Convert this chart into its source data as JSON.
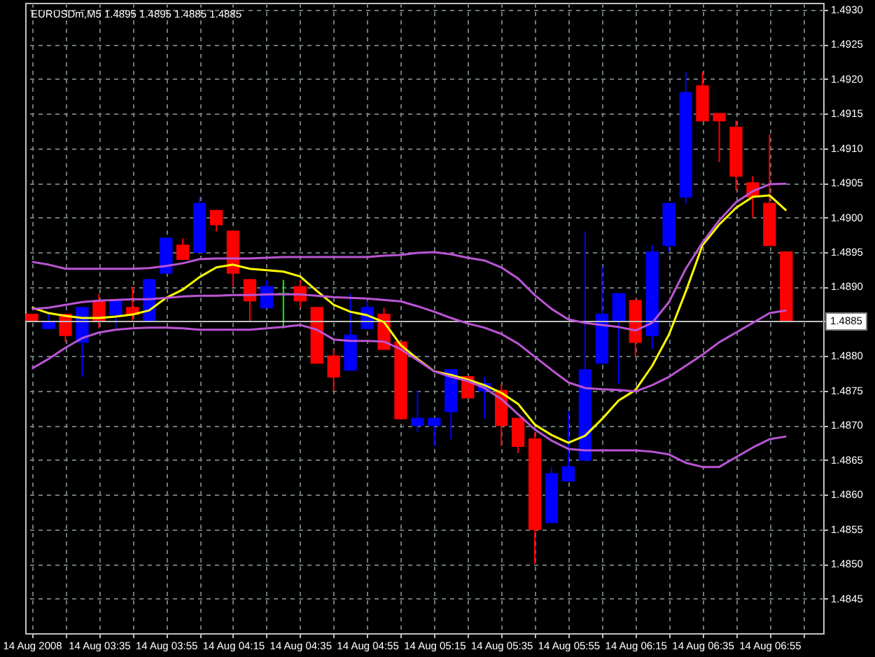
{
  "chart_data": {
    "type": "candlestick",
    "title": "EURUSDm,M5 1.4895 1.4895 1.4885 1.4885",
    "x": [
      "2008-08-14T03:15",
      "2008-08-14T03:20",
      "2008-08-14T03:25",
      "2008-08-14T03:30",
      "2008-08-14T03:35",
      "2008-08-14T03:40",
      "2008-08-14T03:45",
      "2008-08-14T03:50",
      "2008-08-14T03:55",
      "2008-08-14T04:00",
      "2008-08-14T04:05",
      "2008-08-14T04:10",
      "2008-08-14T04:15",
      "2008-08-14T04:20",
      "2008-08-14T04:25",
      "2008-08-14T04:30",
      "2008-08-14T04:35",
      "2008-08-14T04:40",
      "2008-08-14T04:45",
      "2008-08-14T04:50",
      "2008-08-14T04:55",
      "2008-08-14T05:00",
      "2008-08-14T05:05",
      "2008-08-14T05:10",
      "2008-08-14T05:15",
      "2008-08-14T05:20",
      "2008-08-14T05:25",
      "2008-08-14T05:30",
      "2008-08-14T05:35",
      "2008-08-14T05:40",
      "2008-08-14T05:45",
      "2008-08-14T05:50",
      "2008-08-14T05:55",
      "2008-08-14T06:00",
      "2008-08-14T06:05",
      "2008-08-14T06:10",
      "2008-08-14T06:15",
      "2008-08-14T06:20",
      "2008-08-14T06:25",
      "2008-08-14T06:30",
      "2008-08-14T06:35",
      "2008-08-14T06:40",
      "2008-08-14T06:45",
      "2008-08-14T06:50",
      "2008-08-14T06:55",
      "2008-08-14T07:00"
    ],
    "ohlc": [
      [
        1.4886,
        1.4886,
        1.4885,
        1.4885
      ],
      [
        1.4884,
        1.4886,
        1.4884,
        1.4885
      ],
      [
        1.4886,
        1.4886,
        1.4882,
        1.4883
      ],
      [
        1.4882,
        1.4887,
        1.4877,
        1.4887
      ],
      [
        1.4888,
        1.4889,
        1.4884,
        1.4885
      ],
      [
        1.4886,
        1.4888,
        1.4884,
        1.4888
      ],
      [
        1.4887,
        1.489,
        1.4885,
        1.4886
      ],
      [
        1.4885,
        1.4891,
        1.4885,
        1.4891
      ],
      [
        1.4892,
        1.4897,
        1.4892,
        1.4897
      ],
      [
        1.4896,
        1.4897,
        1.4894,
        1.4894
      ],
      [
        1.4895,
        1.4903,
        1.4895,
        1.4902
      ],
      [
        1.4901,
        1.4901,
        1.4898,
        1.4899
      ],
      [
        1.4898,
        1.4898,
        1.489,
        1.4892
      ],
      [
        1.4891,
        1.4891,
        1.4885,
        1.4888
      ],
      [
        1.4887,
        1.4891,
        1.4887,
        1.489
      ],
      [
        1.4889,
        1.4891,
        1.4884,
        1.4889
      ],
      [
        1.489,
        1.4891,
        1.4887,
        1.4888
      ],
      [
        1.4887,
        1.4887,
        1.4879,
        1.4879
      ],
      [
        1.488,
        1.4881,
        1.4875,
        1.4877
      ],
      [
        1.4878,
        1.4889,
        1.4878,
        1.4883
      ],
      [
        1.4884,
        1.4888,
        1.4884,
        1.4887
      ],
      [
        1.4886,
        1.4887,
        1.4881,
        1.4881
      ],
      [
        1.4882,
        1.4882,
        1.4871,
        1.4871
      ],
      [
        1.487,
        1.4875,
        1.4869,
        1.4871
      ],
      [
        1.487,
        1.4871,
        1.4867,
        1.4871
      ],
      [
        1.4872,
        1.4878,
        1.4868,
        1.4878
      ],
      [
        1.4877,
        1.4877,
        1.4874,
        1.4874
      ],
      [
        1.4875,
        1.4877,
        1.4871,
        1.4876
      ],
      [
        1.4875,
        1.4876,
        1.4867,
        1.487
      ],
      [
        1.4871,
        1.4871,
        1.4866,
        1.4867
      ],
      [
        1.4868,
        1.4869,
        1.485,
        1.4855
      ],
      [
        1.4856,
        1.4864,
        1.4856,
        1.4863
      ],
      [
        1.4862,
        1.4872,
        1.4862,
        1.4864
      ],
      [
        1.4865,
        1.4898,
        1.4865,
        1.4878
      ],
      [
        1.4879,
        1.4893,
        1.4879,
        1.4886
      ],
      [
        1.4885,
        1.4889,
        1.4876,
        1.4889
      ],
      [
        1.4888,
        1.4888,
        1.488,
        1.4882
      ],
      [
        1.4883,
        1.4896,
        1.4881,
        1.4895
      ],
      [
        1.4896,
        1.4902,
        1.4895,
        1.4902
      ],
      [
        1.4903,
        1.4921,
        1.4902,
        1.4918
      ],
      [
        1.4919,
        1.4921,
        1.4914,
        1.4914
      ],
      [
        1.4915,
        1.4915,
        1.4908,
        1.4914
      ],
      [
        1.4913,
        1.4914,
        1.4904,
        1.4906
      ],
      [
        1.4905,
        1.4906,
        1.49,
        1.4903
      ],
      [
        1.4902,
        1.4912,
        1.4896,
        1.4896
      ],
      [
        1.4895,
        1.4895,
        1.4885,
        1.4885
      ]
    ],
    "colors": [
      "#ff0000",
      "#0000ff",
      "#ff0000",
      "#0000ff",
      "#ff0000",
      "#0000ff",
      "#ff0000",
      "#0000ff",
      "#0000ff",
      "#ff0000",
      "#0000ff",
      "#ff0000",
      "#ff0000",
      "#ff0000",
      "#0000ff",
      "#00ff00",
      "#ff0000",
      "#ff0000",
      "#ff0000",
      "#0000ff",
      "#0000ff",
      "#ff0000",
      "#ff0000",
      "#0000ff",
      "#0000ff",
      "#0000ff",
      "#ff0000",
      "#0000ff",
      "#ff0000",
      "#ff0000",
      "#ff0000",
      "#0000ff",
      "#0000ff",
      "#0000ff",
      "#0000ff",
      "#0000ff",
      "#ff0000",
      "#0000ff",
      "#0000ff",
      "#0000ff",
      "#ff0000",
      "#ff0000",
      "#ff0000",
      "#ff0000",
      "#ff0000",
      "#ff0000"
    ],
    "series": [
      {
        "type": "line",
        "color": "#ffff00",
        "values": [
          1.4887,
          1.48862,
          1.48858,
          1.48855,
          1.48855,
          1.48857,
          1.4886,
          1.48866,
          1.48884,
          1.48896,
          1.48914,
          1.48928,
          1.48932,
          1.48926,
          1.48924,
          1.48922,
          1.48915,
          1.48894,
          1.48874,
          1.48864,
          1.48859,
          1.48849,
          1.48816,
          1.48796,
          1.48778,
          1.48773,
          1.48766,
          1.48758,
          1.48747,
          1.48731,
          1.48701,
          1.48686,
          1.48675,
          1.48685,
          1.48709,
          1.48736,
          1.48751,
          1.48786,
          1.48831,
          1.48893,
          1.4896,
          1.4899,
          1.49014,
          1.4903,
          1.49032,
          1.4901
        ]
      },
      {
        "type": "line",
        "color": "#ba55d3",
        "values": [
          1.48936,
          1.48932,
          1.48926,
          1.48926,
          1.48926,
          1.48926,
          1.48926,
          1.48927,
          1.4893,
          1.48934,
          1.4894,
          1.48941,
          1.48941,
          1.48941,
          1.48942,
          1.48943,
          1.48943,
          1.48943,
          1.48943,
          1.48943,
          1.48943,
          1.48945,
          1.48946,
          1.48949,
          1.4895,
          1.48947,
          1.48942,
          1.48938,
          1.48928,
          1.48912,
          1.48888,
          1.48868,
          1.48853,
          1.48848,
          1.48845,
          1.48842,
          1.48837,
          1.48848,
          1.48878,
          1.48926,
          1.48964,
          1.48996,
          1.49022,
          1.49038,
          1.49048,
          1.49049
        ]
      },
      {
        "type": "line",
        "color": "#ba55d3",
        "values": [
          1.48868,
          1.4887,
          1.48874,
          1.48878,
          1.4888,
          1.48881,
          1.48882,
          1.48882,
          1.48884,
          1.48886,
          1.48887,
          1.48887,
          1.48888,
          1.48888,
          1.48889,
          1.48889,
          1.48889,
          1.48887,
          1.48885,
          1.48884,
          1.48883,
          1.48881,
          1.48879,
          1.48872,
          1.48864,
          1.48855,
          1.48847,
          1.48841,
          1.48832,
          1.48818,
          1.48799,
          1.4878,
          1.48762,
          1.48754,
          1.48752,
          1.48751,
          1.48749,
          1.48758,
          1.4877,
          1.48786,
          1.48802,
          1.4882,
          1.48834,
          1.48848,
          1.48862,
          1.48866
        ]
      },
      {
        "type": "line",
        "color": "#ba55d3",
        "values": [
          1.48782,
          1.48796,
          1.48812,
          1.48826,
          1.48834,
          1.48838,
          1.4884,
          1.48841,
          1.48841,
          1.4884,
          1.48838,
          1.48838,
          1.48838,
          1.48838,
          1.4884,
          1.48842,
          1.48845,
          1.48838,
          1.48824,
          1.48822,
          1.48822,
          1.48821,
          1.4881,
          1.48794,
          1.48778,
          1.4877,
          1.48764,
          1.48754,
          1.48738,
          1.48716,
          1.48694,
          1.48678,
          1.48666,
          1.48664,
          1.48664,
          1.48664,
          1.48664,
          1.48662,
          1.48658,
          1.48646,
          1.4864,
          1.4864,
          1.48654,
          1.48668,
          1.4868,
          1.48684
        ]
      }
    ],
    "xlim": [
      "2008-08-14T03:13",
      "2008-08-14T07:11"
    ],
    "xticks": [
      {
        "value": "2008-08-14T03:15",
        "label": "14 Aug 2008"
      },
      {
        "value": "2008-08-14T03:25",
        "label": null
      },
      {
        "value": "2008-08-14T03:35",
        "label": "14 Aug 03:35"
      },
      {
        "value": "2008-08-14T03:45",
        "label": null
      },
      {
        "value": "2008-08-14T03:55",
        "label": "14 Aug 03:55"
      },
      {
        "value": "2008-08-14T04:05",
        "label": null
      },
      {
        "value": "2008-08-14T04:15",
        "label": "14 Aug 04:15"
      },
      {
        "value": "2008-08-14T04:25",
        "label": null
      },
      {
        "value": "2008-08-14T04:35",
        "label": "14 Aug 04:35"
      },
      {
        "value": "2008-08-14T04:45",
        "label": null
      },
      {
        "value": "2008-08-14T04:55",
        "label": "14 Aug 04:55"
      },
      {
        "value": "2008-08-14T05:05",
        "label": null
      },
      {
        "value": "2008-08-14T05:15",
        "label": "14 Aug 05:15"
      },
      {
        "value": "2008-08-14T05:25",
        "label": null
      },
      {
        "value": "2008-08-14T05:35",
        "label": "14 Aug 05:35"
      },
      {
        "value": "2008-08-14T05:45",
        "label": null
      },
      {
        "value": "2008-08-14T05:55",
        "label": "14 Aug 05:55"
      },
      {
        "value": "2008-08-14T06:05",
        "label": null
      },
      {
        "value": "2008-08-14T06:15",
        "label": "14 Aug 06:15"
      },
      {
        "value": "2008-08-14T06:25",
        "label": null
      },
      {
        "value": "2008-08-14T06:35",
        "label": "14 Aug 06:35"
      },
      {
        "value": "2008-08-14T06:45",
        "label": null
      },
      {
        "value": "2008-08-14T06:55",
        "label": "14 Aug 06:55"
      },
      {
        "value": "2008-08-14T07:05",
        "label": null
      }
    ],
    "ylim": [
      1.484,
      1.4931
    ],
    "yticks": [
      1.4845,
      {
        "value": 1.485,
        "label": "1.4850"
      },
      1.4855,
      {
        "value": 1.486,
        "label": "1.4860"
      },
      1.4865,
      {
        "value": 1.487,
        "label": "1.4870"
      },
      1.4875,
      {
        "value": 1.488,
        "label": "1.4880"
      },
      {
        "value": 1.4885,
        "label": null
      },
      {
        "value": 1.489,
        "label": "1.4890"
      },
      1.4895,
      {
        "value": 1.49,
        "label": "1.4900"
      },
      1.4905,
      {
        "value": 1.491,
        "label": "1.4910"
      },
      1.4915,
      {
        "value": 1.492,
        "label": "1.4920"
      },
      1.4925,
      {
        "value": 1.493,
        "label": "1.4930"
      }
    ],
    "grid": true,
    "ref_lines": [
      {
        "axis": "y",
        "value": 1.4885,
        "label": "1.4885",
        "color": "#c0c0c0"
      }
    ]
  }
}
